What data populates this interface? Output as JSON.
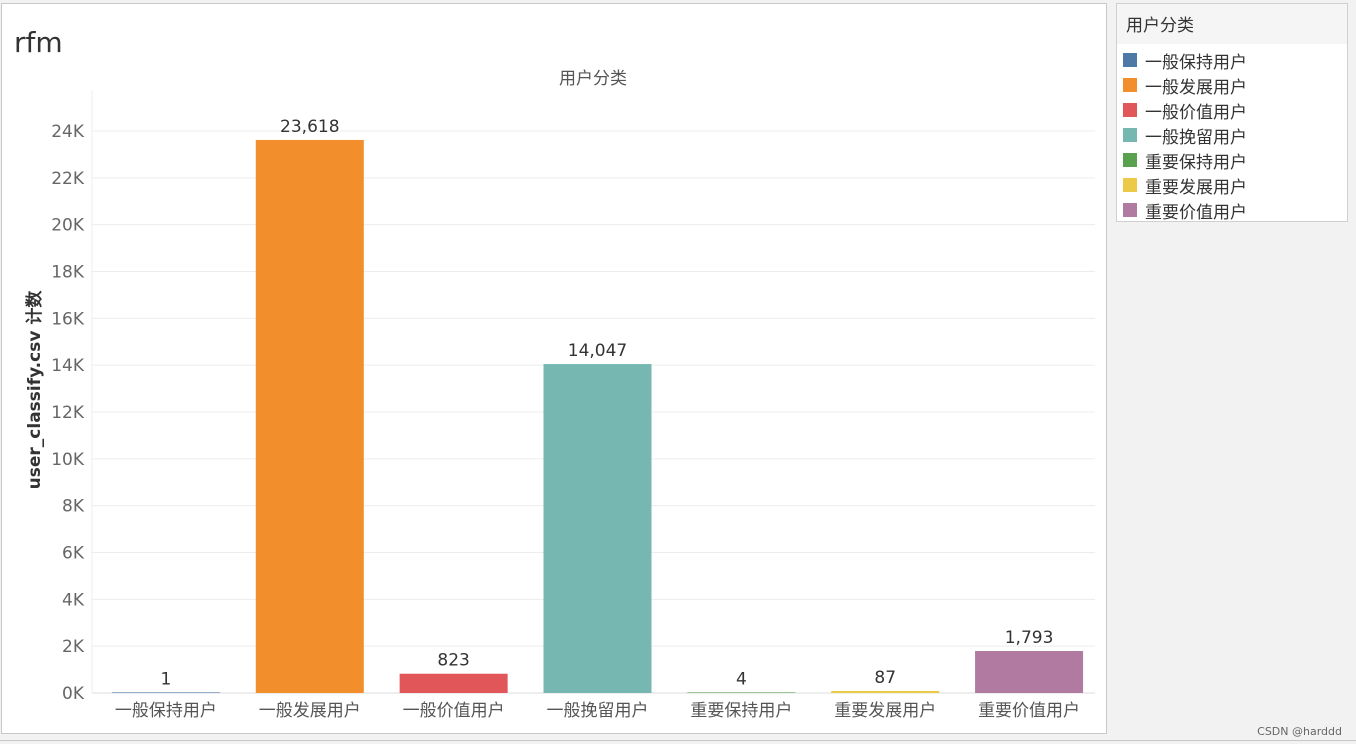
{
  "sheet": {
    "title": "rfm"
  },
  "legend": {
    "title": "用户分类",
    "items": [
      {
        "label": "一般保持用户",
        "color": "#4e79a7"
      },
      {
        "label": "一般发展用户",
        "color": "#f28e2b"
      },
      {
        "label": "一般价值用户",
        "color": "#e15759"
      },
      {
        "label": "一般挽留用户",
        "color": "#76b7b2"
      },
      {
        "label": "重要保持用户",
        "color": "#59a14f"
      },
      {
        "label": "重要发展用户",
        "color": "#edc948"
      },
      {
        "label": "重要价值用户",
        "color": "#b07aa1"
      }
    ]
  },
  "watermark": "CSDN @harddd",
  "chart_data": {
    "type": "bar",
    "title": "用户分类",
    "xlabel": "",
    "ylabel": "user_classify.csv 计数",
    "categories": [
      "一般保持用户",
      "一般发展用户",
      "一般价值用户",
      "一般挽留用户",
      "重要保持用户",
      "重要发展用户",
      "重要价值用户"
    ],
    "values": [
      1,
      23618,
      823,
      14047,
      4,
      87,
      1793
    ],
    "data_labels": [
      "1",
      "23,618",
      "823",
      "14,047",
      "4",
      "87",
      "1,793"
    ],
    "colors": [
      "#4e79a7",
      "#f28e2b",
      "#e15759",
      "#76b7b2",
      "#59a14f",
      "#edc948",
      "#b07aa1"
    ],
    "ylim": [
      0,
      24000
    ],
    "yticks": [
      0,
      2000,
      4000,
      6000,
      8000,
      10000,
      12000,
      14000,
      16000,
      18000,
      20000,
      22000,
      24000
    ],
    "ytick_labels": [
      "0K",
      "2K",
      "4K",
      "6K",
      "8K",
      "10K",
      "12K",
      "14K",
      "16K",
      "18K",
      "20K",
      "22K",
      "24K"
    ],
    "grid": true,
    "legend_position": "right"
  }
}
